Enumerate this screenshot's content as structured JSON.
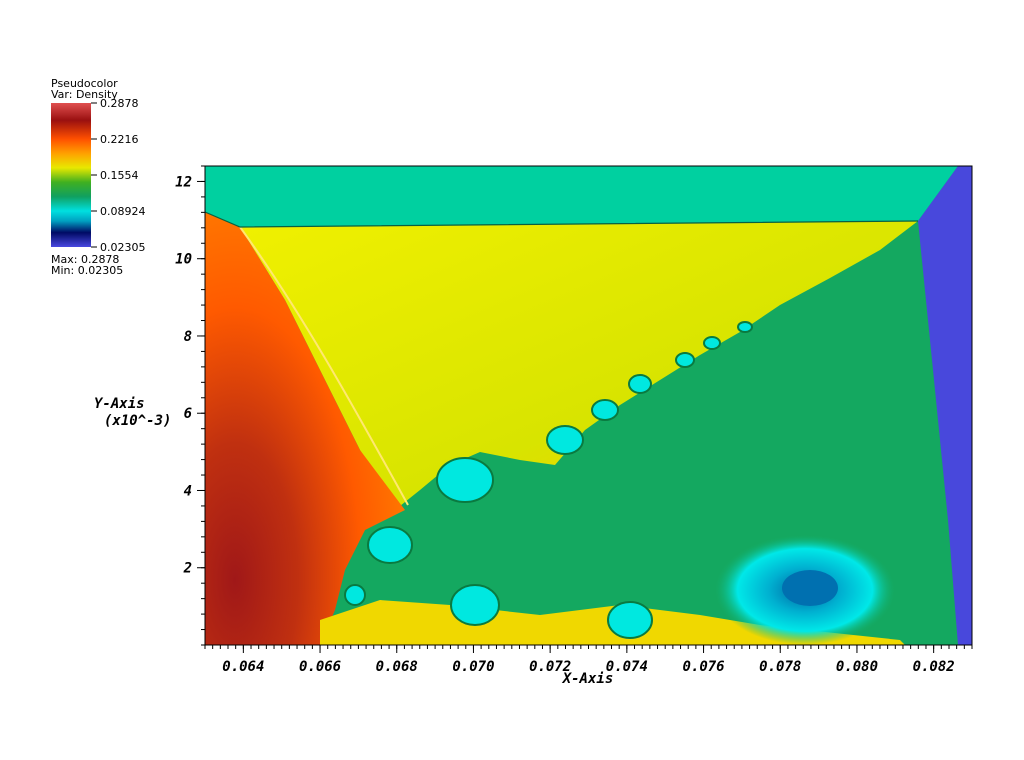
{
  "chart_data": {
    "type": "heatmap",
    "plot_kind": "Pseudocolor",
    "variable_label": "Var: Density",
    "legend": {
      "title": "Pseudocolor",
      "var": "Var: Density",
      "tick_labels": [
        "0.2878",
        "0.2216",
        "0.1554",
        "0.08924",
        "0.02305"
      ],
      "tick_values": [
        0.2878,
        0.2216,
        0.1554,
        0.08924,
        0.02305
      ],
      "max_label": "Max:  0.2878",
      "min_label": "Min:  0.02305",
      "max": 0.2878,
      "min": 0.02305,
      "placement": "top-left",
      "colormap": [
        "#4848e0",
        "#000a64",
        "#00c8c8",
        "#00e0e0",
        "#10a040",
        "#20b030",
        "#80c800",
        "#e8e800",
        "#ffa000",
        "#ff6000",
        "#b01010",
        "#e05050"
      ]
    },
    "xlabel": "X-Axis",
    "ylabel": "Y-Axis",
    "ylabel_scale": "(x10^-3)",
    "xlim": [
      0.063,
      0.083
    ],
    "ylim": [
      0.0,
      12.4
    ],
    "x_ticks": [
      0.064,
      0.066,
      0.068,
      0.07,
      0.072,
      0.074,
      0.076,
      0.078,
      0.08,
      0.082
    ],
    "x_tick_labels": [
      "0.064",
      "0.066",
      "0.068",
      "0.070",
      "0.072",
      "0.074",
      "0.076",
      "0.078",
      "0.080",
      "0.082"
    ],
    "y_ticks": [
      2,
      4,
      6,
      8,
      10,
      12
    ],
    "y_tick_labels": [
      "2",
      "4",
      "6",
      "8",
      "10",
      "12"
    ],
    "regions": {
      "top_band": "#00d0a0",
      "right_band": "#4848dc",
      "shocked_left": "#ff6a00",
      "dense_core": "#9a1a10",
      "middle_yellow": "#e4e800",
      "green_interior": "#10a860",
      "vortex_cyan": "#00e8e8"
    }
  }
}
